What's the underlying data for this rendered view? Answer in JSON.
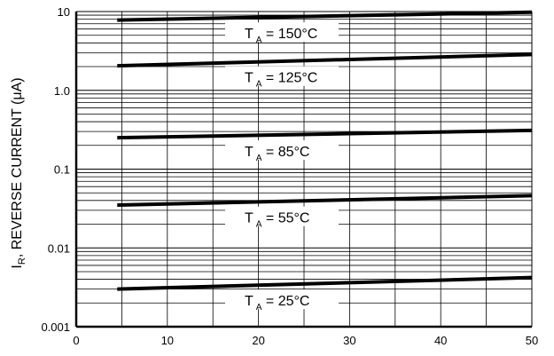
{
  "chart_data": {
    "type": "line",
    "xlabel": "",
    "ylabel": {
      "main": "I",
      "sub": "R",
      "rest": ", REVERSE CURRENT (μA)"
    },
    "x_ticks": [
      "0",
      "10",
      "20",
      "30",
      "40",
      "50"
    ],
    "y_ticks": [
      "0.001",
      "0.01",
      "0.1",
      "1.0",
      "10"
    ],
    "xlim": [
      0,
      50
    ],
    "ylim": [
      0.001,
      10
    ],
    "y_scale": "log",
    "grid": true,
    "series": [
      {
        "name": "T_A = 150°C",
        "label": {
          "t": "T",
          "sub": "A",
          "rest": " = 150°C"
        },
        "x": [
          4.5,
          50
        ],
        "y": [
          7.8,
          9.8
        ]
      },
      {
        "name": "T_A = 125°C",
        "label": {
          "t": "T",
          "sub": "A",
          "rest": " = 125°C"
        },
        "x": [
          4.5,
          50
        ],
        "y": [
          2.05,
          2.85
        ]
      },
      {
        "name": "T_A = 85°C",
        "label": {
          "t": "T",
          "sub": "A",
          "rest": " = 85°C"
        },
        "x": [
          4.5,
          50
        ],
        "y": [
          0.25,
          0.31
        ]
      },
      {
        "name": "T_A = 55°C",
        "label": {
          "t": "T",
          "sub": "A",
          "rest": " = 55°C"
        },
        "x": [
          4.5,
          50
        ],
        "y": [
          0.035,
          0.046
        ]
      },
      {
        "name": "T_A = 25°C",
        "label": {
          "t": "T",
          "sub": "A",
          "rest": " = 25°C"
        },
        "x": [
          4.5,
          50
        ],
        "y": [
          0.003,
          0.0042
        ]
      }
    ]
  }
}
